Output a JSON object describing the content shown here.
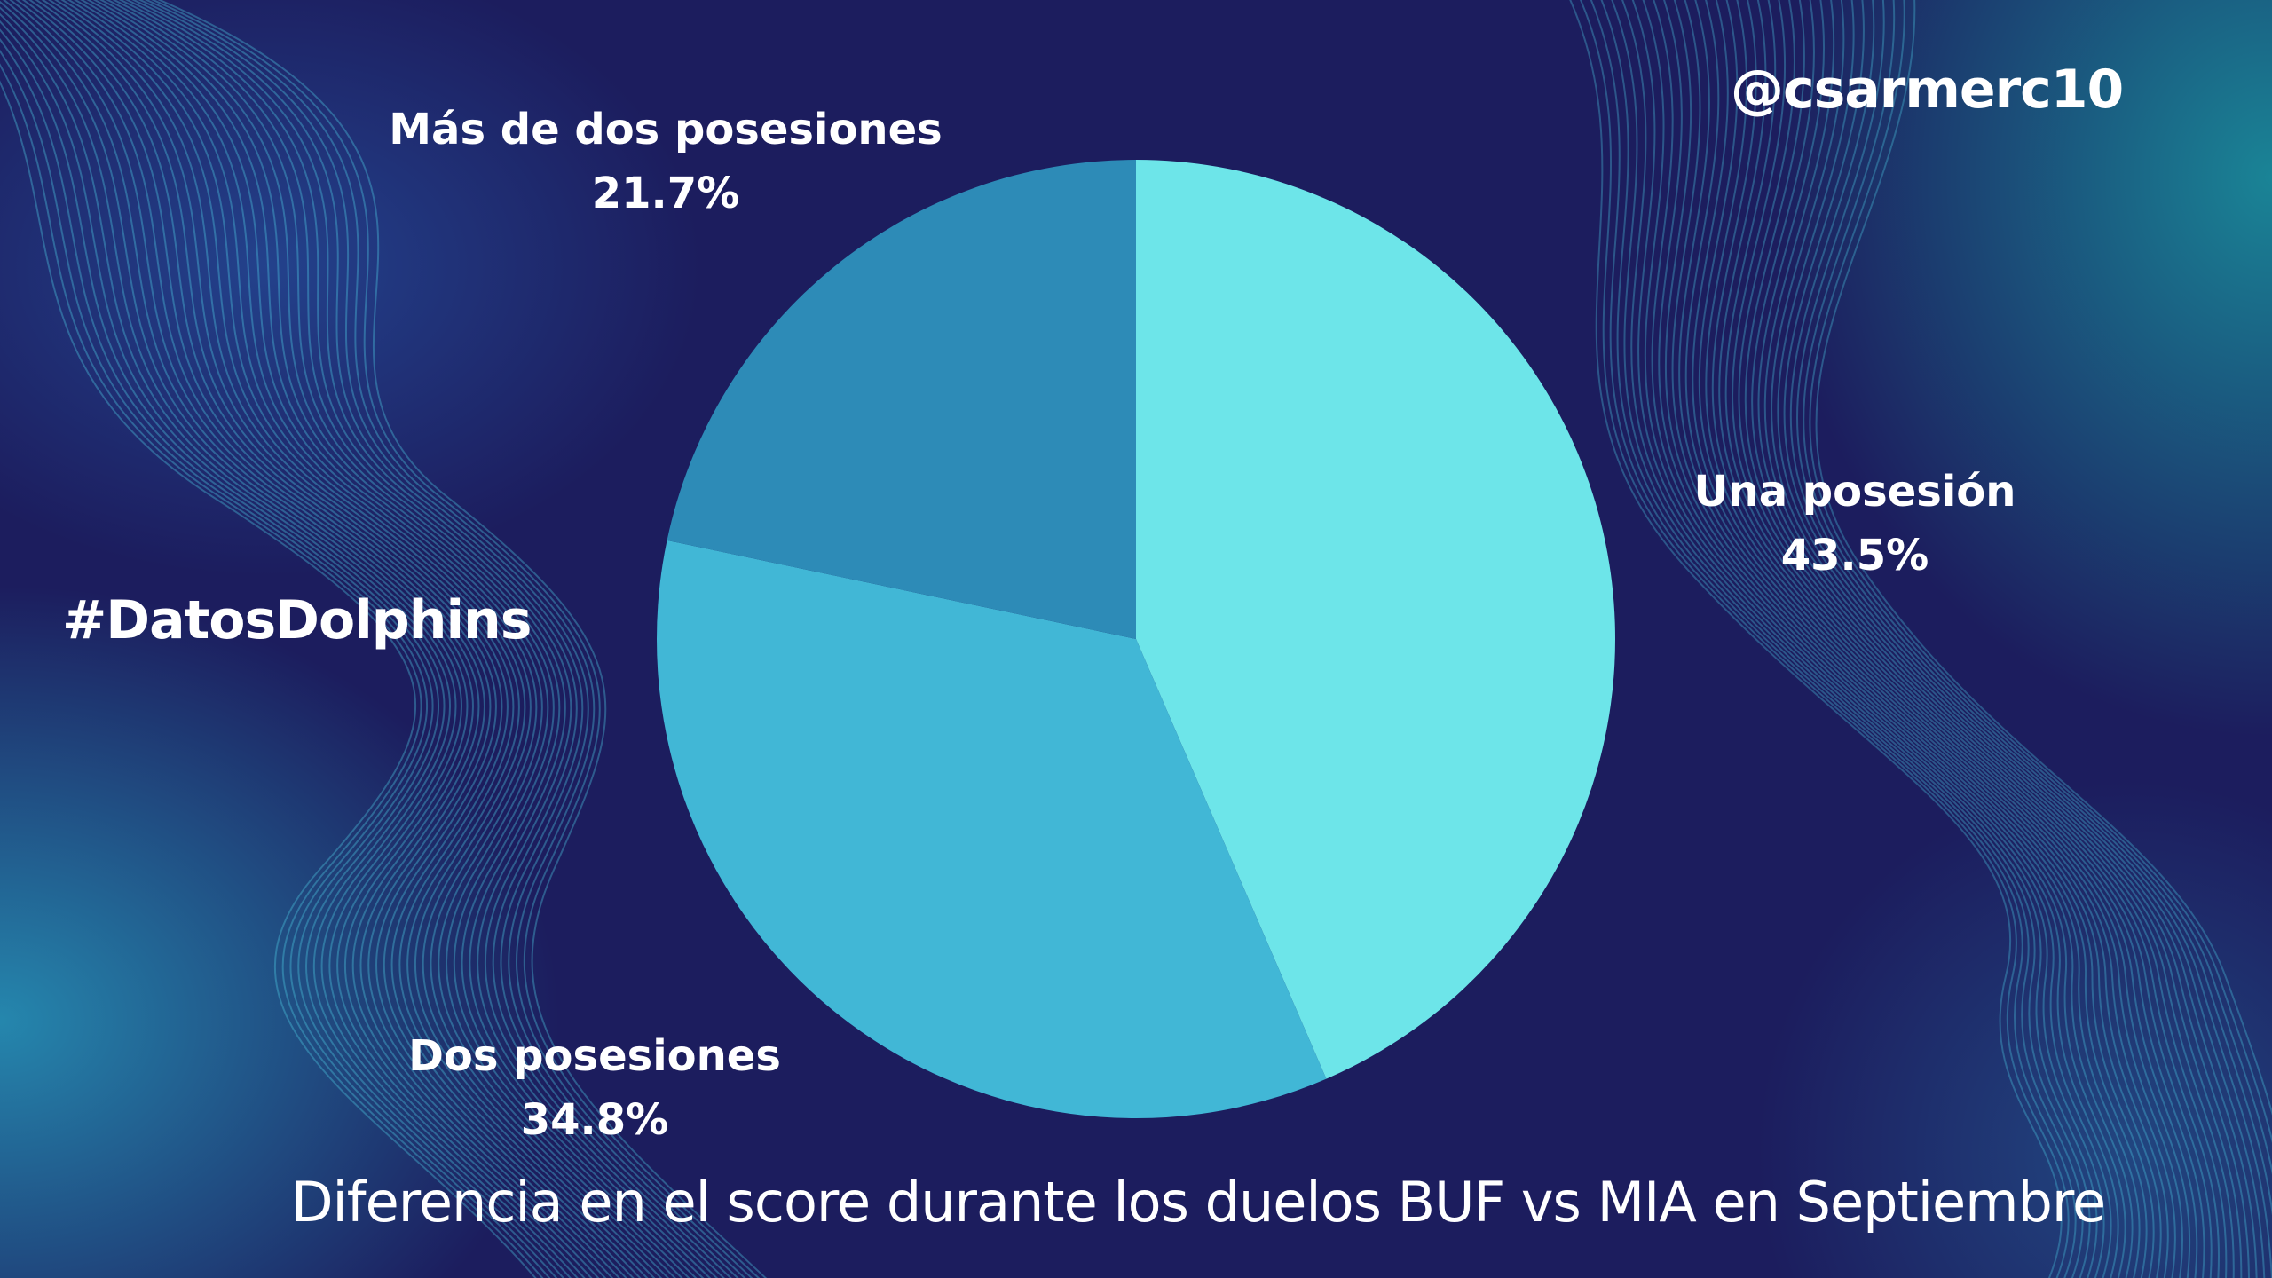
{
  "hashtag": "#DatosDolphins",
  "handle": "@csarmerc10",
  "chart_data": {
    "type": "pie",
    "title": "Diferencia en el score durante los duelos BUF vs MIA en Septiembre",
    "categories": [
      "Una posesión",
      "Dos posesiones",
      "Más de dos posesiones"
    ],
    "values": [
      43.5,
      34.8,
      21.7
    ],
    "value_labels": [
      "43.5%",
      "34.8%",
      "21.7%"
    ],
    "colors": [
      "#6de5e9",
      "#41b7d6",
      "#2d8bb7"
    ],
    "start": "12 o'clock",
    "direction": "clockwise",
    "legend": "none"
  }
}
